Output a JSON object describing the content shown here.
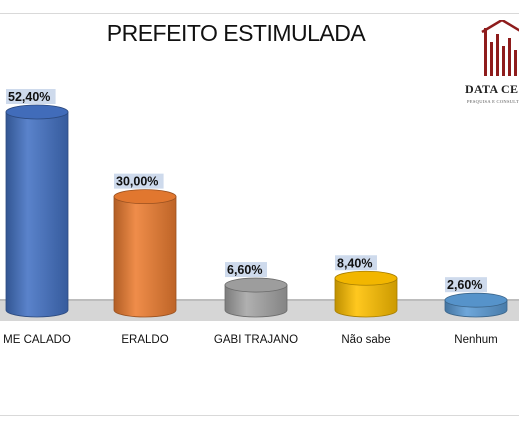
{
  "logo": {
    "name": "DATA CE",
    "subtitle": "PESQUISA E CONSULT",
    "colors": {
      "primary": "#8e1c1c",
      "text": "#222222"
    }
  },
  "chart_data": {
    "type": "bar",
    "title": "PREFEITO ESTIMULADA",
    "categories": [
      "ME CALADO",
      "ERALDO",
      "GABI TRAJANO",
      "Não sabe",
      "Nenhum"
    ],
    "values": [
      52.4,
      30.0,
      6.6,
      8.4,
      2.6
    ],
    "value_labels": [
      "52,40%",
      "30,00%",
      "6,60%",
      "8,40%",
      "2,60%"
    ],
    "colors": [
      "#4472c4",
      "#ed7d31",
      "#a5a5a5",
      "#ffc000",
      "#5b9bd5"
    ],
    "ylim": [
      0,
      60
    ],
    "grid": false,
    "legend": "none"
  }
}
